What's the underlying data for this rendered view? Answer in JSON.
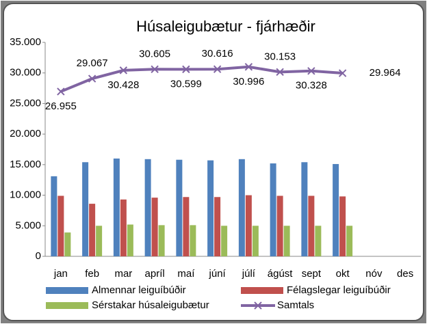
{
  "chart_data": {
    "type": "bar",
    "title": "Húsaleigubætur - fjárhæðir",
    "categories": [
      "jan",
      "feb",
      "mar",
      "apríl",
      "maí",
      "júní",
      "júlí",
      "ágúst",
      "sept",
      "okt",
      "nóv",
      "des"
    ],
    "ylim": [
      0,
      35000
    ],
    "yticks": [
      0,
      {
        "value": 5000,
        "label": "5.000"
      },
      {
        "value": 10000,
        "label": "10.000"
      },
      {
        "value": 15000,
        "label": "15.000"
      },
      {
        "value": 20000,
        "label": "20.000"
      },
      {
        "value": 25000,
        "label": "25.000"
      },
      {
        "value": 30000,
        "label": "30.000"
      },
      {
        "value": 35000,
        "label": "35.000"
      }
    ],
    "series": [
      {
        "name": "Almennar leiguíbúðir",
        "color": "#4f81bd",
        "type": "bar",
        "values": [
          13100,
          15400,
          16000,
          15900,
          15800,
          15700,
          15900,
          15200,
          15400,
          15100,
          null,
          null
        ]
      },
      {
        "name": "Félagslegar leiguíbúðir",
        "color": "#c0504d",
        "type": "bar",
        "values": [
          9900,
          8600,
          9300,
          9600,
          9700,
          9700,
          10000,
          9900,
          9900,
          9800,
          null,
          null
        ]
      },
      {
        "name": "Sérstakar húsaleigubætur",
        "color": "#9bbb59",
        "type": "bar",
        "values": [
          3900,
          5000,
          5200,
          5100,
          5100,
          5000,
          5000,
          5000,
          5000,
          5000,
          null,
          null
        ]
      },
      {
        "name": "Samtals",
        "color": "#8064a2",
        "type": "line",
        "values": [
          26955,
          29067,
          30428,
          30605,
          30599,
          30616,
          30996,
          30153,
          30328,
          29964,
          null,
          null
        ],
        "value_labels": [
          "26.955",
          "29.067",
          "30.428",
          "30.605",
          "30.599",
          "30.616",
          "30.996",
          "30.153",
          "30.328",
          "29.964",
          null,
          null
        ]
      }
    ]
  }
}
